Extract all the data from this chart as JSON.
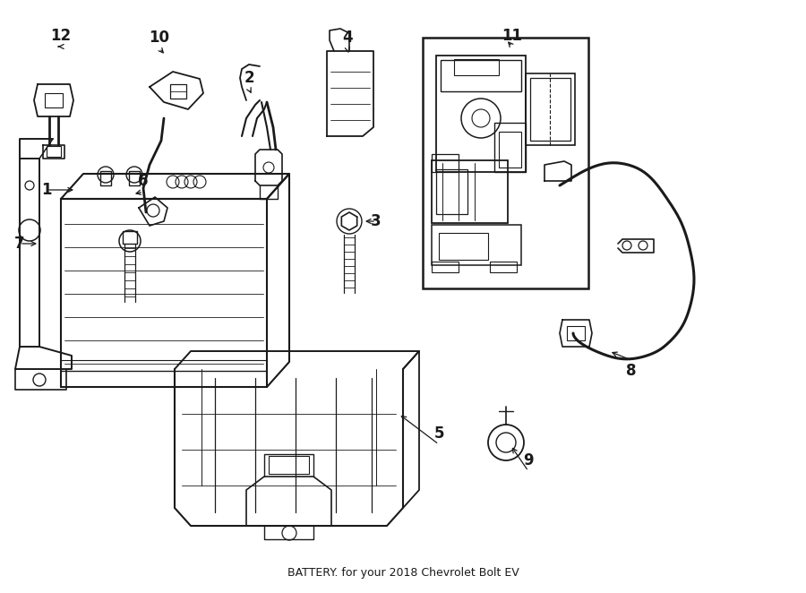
{
  "title": "BATTERY. for your 2018 Chevrolet Bolt EV",
  "background_color": "#ffffff",
  "line_color": "#1a1a1a",
  "fig_width": 9.0,
  "fig_height": 6.62,
  "dpi": 100,
  "title_fontsize": 9
}
